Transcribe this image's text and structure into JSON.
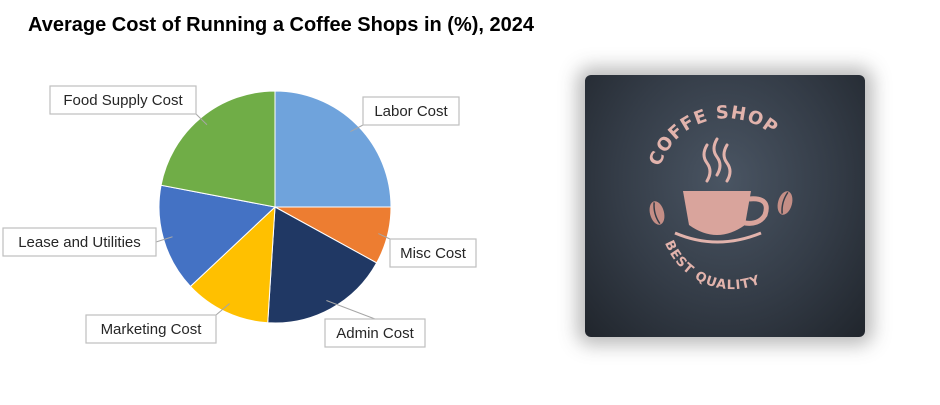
{
  "title": "Average Cost of Running a Coffee Shops in (%), 2024",
  "chart_data": {
    "type": "pie",
    "title": "Average Cost of Running a Coffee Shops in (%), 2024",
    "start_angle_deg": 0,
    "direction": "clockwise",
    "slices": [
      {
        "label": "Labor Cost",
        "value": 25,
        "color": "#6fa3dc"
      },
      {
        "label": "Misc Cost",
        "value": 8,
        "color": "#ed7d31"
      },
      {
        "label": "Admin Cost",
        "value": 18,
        "color": "#203864"
      },
      {
        "label": "Marketing Cost",
        "value": 12,
        "color": "#ffc000"
      },
      {
        "label": "Lease and Utilities",
        "value": 15,
        "color": "#4472c4"
      },
      {
        "label": "Food Supply Cost",
        "value": 22,
        "color": "#70ad47"
      }
    ],
    "legend": "none",
    "data_labels": "category name callouts"
  },
  "logo": {
    "top_text": "COFFE SHOP",
    "bottom_text": "BEST QUALITY",
    "icon": "coffee-cup-icon",
    "accent_color": "#e2b3ac"
  }
}
